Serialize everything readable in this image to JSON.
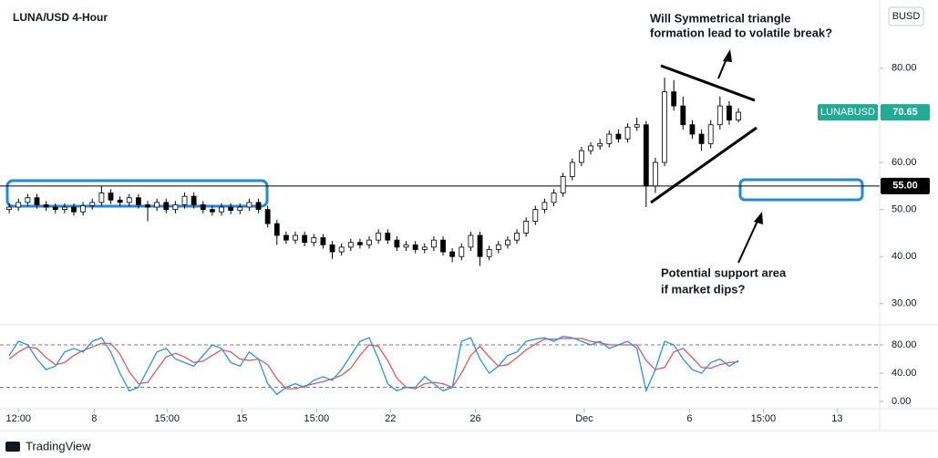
{
  "chart_data": [
    {
      "type": "candlestick",
      "title": "LUNA/USD 4-Hour",
      "currency": "BUSD",
      "symbol": "LUNABUSD",
      "up_color": "#ffffff",
      "down_color": "#000000",
      "wick_color": "#000000",
      "last_color": "#22ab94",
      "open": [
        50.0,
        50.5,
        51.5,
        52.5,
        51.0,
        50.5,
        50.0,
        50.5,
        49.5,
        50.8,
        51.5,
        53.5,
        52.0,
        51.5,
        52.5,
        51.0,
        50.5,
        51.5,
        50.0,
        51.0,
        52.8,
        51.0,
        50.0,
        49.5,
        50.5,
        49.8,
        50.5,
        51.5,
        50.0,
        47.0,
        44.5,
        43.5,
        44.5,
        43.0,
        44.0,
        42.5,
        41.0,
        42.0,
        43.0,
        42.5,
        43.5,
        45.0,
        43.5,
        42.0,
        42.5,
        41.5,
        42.0,
        43.5,
        41.0,
        40.0,
        42.0,
        44.5,
        40.0,
        41.5,
        42.5,
        43.5,
        45.0,
        47.5,
        50.0,
        51.5,
        53.5,
        57.0,
        60.0,
        62.5,
        63.5,
        64.0,
        66.0,
        65.0,
        67.5,
        68.0,
        55.0,
        60.0,
        75.0,
        72.0,
        68.0,
        66.0,
        64.0,
        68.0,
        72.0,
        69.0
      ],
      "high": [
        51.3,
        52.3,
        53.3,
        53.3,
        51.8,
        51.3,
        51.3,
        51.3,
        51.6,
        52.3,
        55.0,
        54.3,
        52.8,
        53.3,
        53.3,
        51.8,
        52.3,
        52.3,
        51.8,
        53.6,
        53.6,
        51.8,
        50.8,
        51.3,
        51.3,
        51.3,
        52.3,
        52.3,
        50.8,
        47.8,
        45.3,
        45.3,
        45.3,
        44.8,
        44.8,
        43.3,
        42.8,
        43.8,
        43.8,
        44.3,
        45.8,
        45.8,
        44.3,
        43.3,
        43.3,
        42.8,
        44.3,
        44.3,
        41.8,
        42.8,
        45.3,
        45.3,
        42.3,
        43.3,
        44.3,
        45.8,
        48.3,
        50.8,
        52.3,
        54.3,
        57.8,
        60.8,
        63.3,
        64.3,
        65.0,
        66.8,
        67.0,
        68.3,
        69.5,
        68.8,
        61.0,
        78.0,
        77.5,
        74.0,
        69.0,
        67.0,
        69.0,
        74.0,
        73.0,
        71.5
      ],
      "low": [
        49.2,
        49.7,
        50.7,
        50.2,
        49.7,
        49.2,
        49.2,
        48.7,
        48.7,
        50.0,
        50.7,
        51.2,
        50.7,
        50.7,
        50.2,
        47.5,
        49.7,
        49.2,
        49.2,
        50.2,
        50.2,
        49.2,
        48.7,
        48.7,
        49.0,
        49.0,
        49.7,
        49.2,
        46.2,
        42.5,
        42.7,
        42.7,
        42.2,
        42.2,
        41.7,
        39.5,
        40.2,
        41.2,
        41.7,
        41.7,
        42.7,
        42.7,
        41.2,
        41.2,
        40.7,
        40.7,
        41.2,
        40.2,
        38.8,
        39.2,
        41.2,
        38.0,
        39.2,
        40.7,
        41.7,
        42.7,
        44.2,
        46.7,
        49.2,
        50.7,
        52.7,
        56.2,
        59.2,
        61.7,
        62.7,
        63.2,
        64.2,
        64.2,
        66.7,
        50.5,
        53.5,
        59.2,
        71.0,
        67.0,
        65.0,
        62.5,
        63.0,
        67.0,
        68.0,
        68.5
      ],
      "close": [
        50.5,
        51.5,
        52.5,
        51.0,
        50.5,
        50.0,
        50.5,
        49.5,
        50.8,
        51.5,
        53.5,
        52.0,
        51.5,
        52.5,
        51.0,
        50.5,
        51.5,
        50.0,
        51.0,
        52.8,
        51.0,
        50.0,
        49.5,
        50.5,
        49.8,
        50.5,
        51.5,
        50.0,
        47.0,
        44.5,
        43.5,
        44.5,
        43.0,
        44.0,
        42.5,
        41.0,
        42.0,
        43.0,
        42.5,
        43.5,
        45.0,
        43.5,
        42.0,
        42.5,
        41.5,
        42.0,
        43.5,
        41.0,
        40.0,
        42.0,
        44.5,
        40.0,
        41.5,
        42.5,
        43.5,
        45.0,
        47.5,
        50.0,
        51.5,
        53.5,
        57.0,
        60.0,
        62.5,
        63.5,
        64.0,
        66.0,
        65.0,
        67.5,
        68.0,
        55.0,
        60.0,
        75.0,
        72.0,
        68.0,
        66.0,
        64.0,
        68.0,
        72.0,
        69.0,
        70.65
      ],
      "xlim": [
        -1,
        94.3
      ],
      "xticks": [
        {
          "value": 1,
          "label": "12:00"
        },
        {
          "value": 9.2,
          "label": "8"
        },
        {
          "value": 17.1,
          "label": "15:00"
        },
        {
          "value": 25.2,
          "label": "15"
        },
        {
          "value": 33.3,
          "label": "15:00"
        },
        {
          "value": 41.3,
          "label": "22"
        },
        {
          "value": 50.5,
          "label": "26"
        },
        {
          "value": 62.3,
          "label": "Dec"
        },
        {
          "value": 73.7,
          "label": "6"
        },
        {
          "value": 81.7,
          "label": "15:00"
        },
        {
          "value": 89.7,
          "label": "13"
        }
      ],
      "ylim": [
        25.7,
        94.5
      ],
      "yticks": [
        {
          "value": 30,
          "label": "30.00"
        },
        {
          "value": 40,
          "label": "40.00"
        },
        {
          "value": 50,
          "label": "50.00"
        },
        {
          "value": 60,
          "label": "60.00"
        },
        {
          "value": 70,
          "label": "70.00"
        },
        {
          "value": 80,
          "label": "80.00"
        }
      ],
      "level": {
        "value": 55,
        "label": "55.00"
      },
      "annotations": [
        [
          "Will  Symmetrical triangle",
          "formation lead to volatile break?"
        ],
        [
          "Potential support area",
          "if market dips?"
        ]
      ]
    },
    {
      "type": "line",
      "series": [
        {
          "color": "#2196f3",
          "values": [
            65,
            85,
            80,
            60,
            45,
            50,
            70,
            75,
            70,
            85,
            90,
            70,
            40,
            15,
            20,
            45,
            70,
            75,
            60,
            55,
            50,
            65,
            80,
            75,
            55,
            50,
            70,
            60,
            25,
            10,
            20,
            25,
            20,
            30,
            35,
            30,
            45,
            65,
            85,
            90,
            60,
            25,
            15,
            20,
            20,
            35,
            25,
            15,
            20,
            85,
            90,
            60,
            40,
            50,
            65,
            70,
            85,
            88,
            90,
            85,
            92,
            90,
            85,
            80,
            85,
            75,
            80,
            85,
            75,
            15,
            45,
            85,
            80,
            60,
            45,
            40,
            55,
            60,
            50,
            58
          ]
        },
        {
          "color": "#ef5350",
          "values": [
            60,
            70,
            77,
            75,
            62,
            52,
            55,
            65,
            72,
            77,
            82,
            82,
            67,
            42,
            25,
            27,
            45,
            63,
            68,
            63,
            55,
            57,
            65,
            73,
            70,
            60,
            58,
            60,
            52,
            32,
            18,
            18,
            22,
            25,
            28,
            32,
            37,
            47,
            65,
            80,
            78,
            58,
            33,
            20,
            18,
            25,
            27,
            25,
            20,
            40,
            65,
            78,
            63,
            50,
            52,
            62,
            73,
            81,
            88,
            88,
            89,
            89,
            89,
            85,
            83,
            80,
            80,
            80,
            80,
            58,
            45,
            48,
            70,
            75,
            62,
            48,
            47,
            52,
            55,
            56
          ]
        }
      ],
      "ylim": [
        -10.3,
        105.8
      ],
      "yticks": [
        {
          "value": 0,
          "label": "0.00"
        },
        {
          "value": 40,
          "label": "40.00"
        },
        {
          "value": 80,
          "label": "80.00"
        }
      ],
      "bands": [
        20,
        80
      ]
    }
  ],
  "footer": "TradingView"
}
